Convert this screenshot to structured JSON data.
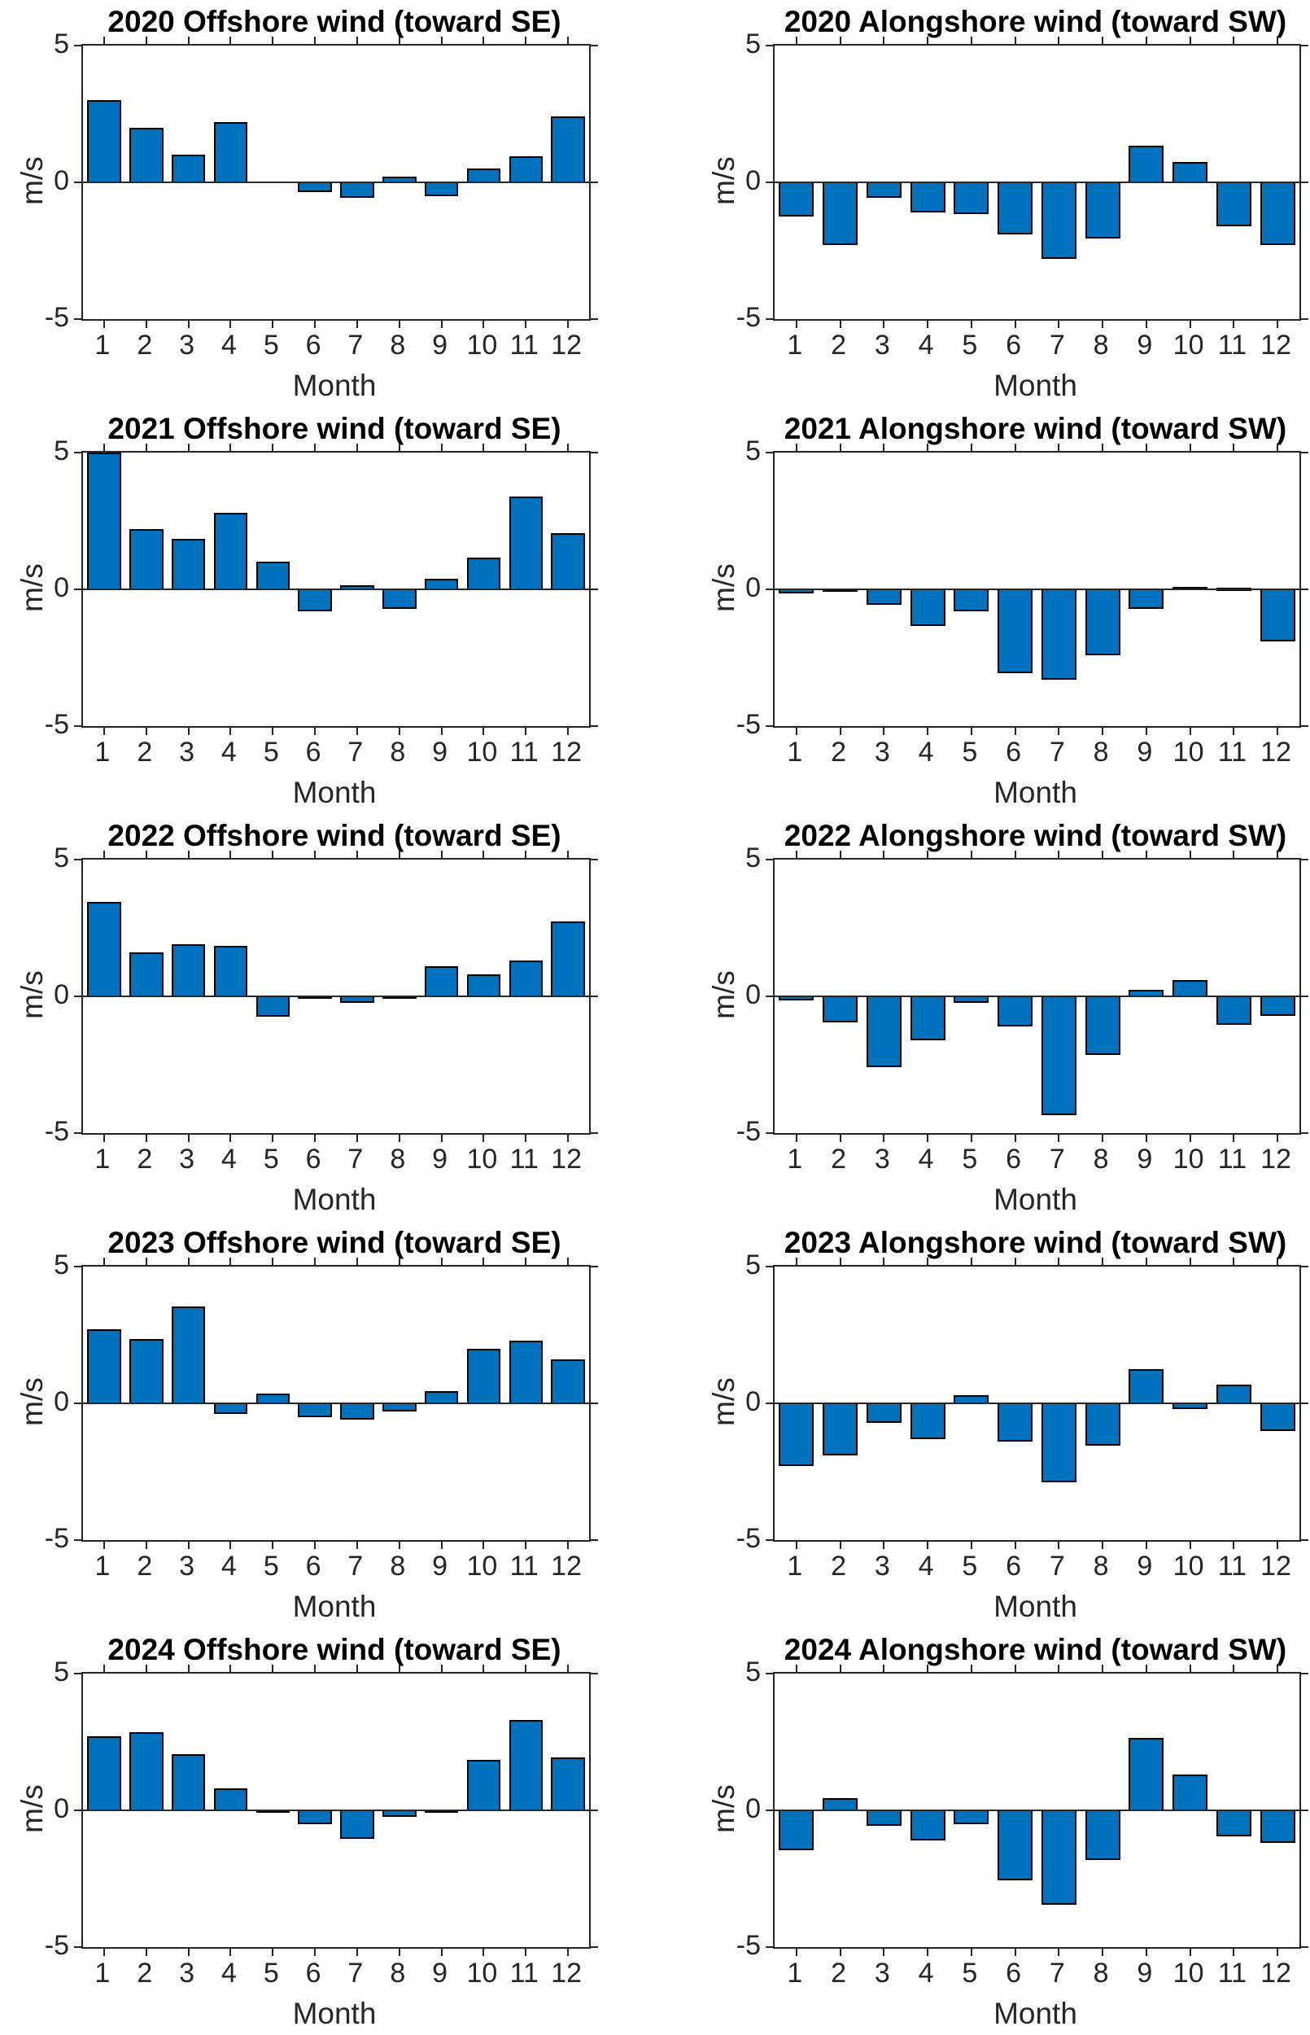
{
  "figure": {
    "ylabel": "m/s",
    "xlabel": "Month",
    "bar_color": "#0072BD",
    "axis_color": "#262626",
    "yticks": [
      "5",
      "0",
      "-5"
    ],
    "xticks": [
      "1",
      "2",
      "3",
      "4",
      "5",
      "6",
      "7",
      "8",
      "9",
      "10",
      "11",
      "12"
    ]
  },
  "chart_data": [
    {
      "type": "bar",
      "title": "2020 Offshore wind (toward SE)",
      "xlabel": "Month",
      "ylabel": "m/s",
      "ylim": [
        -5,
        5
      ],
      "x": [
        1,
        2,
        3,
        4,
        5,
        6,
        7,
        8,
        9,
        10,
        11,
        12
      ],
      "values": [
        3.0,
        2.0,
        1.0,
        2.2,
        0.0,
        -0.35,
        -0.55,
        0.2,
        -0.5,
        0.5,
        0.95,
        2.4
      ]
    },
    {
      "type": "bar",
      "title": "2020 Alongshore wind (toward SW)",
      "xlabel": "Month",
      "ylabel": "m/s",
      "ylim": [
        -5,
        5
      ],
      "x": [
        1,
        2,
        3,
        4,
        5,
        6,
        7,
        8,
        9,
        10,
        11,
        12
      ],
      "values": [
        -1.25,
        -2.3,
        -0.55,
        -1.1,
        -1.15,
        -1.9,
        -2.8,
        -2.05,
        1.35,
        0.75,
        -1.6,
        -2.3
      ]
    },
    {
      "type": "bar",
      "title": "2021 Offshore wind (toward SE)",
      "xlabel": "Month",
      "ylabel": "m/s",
      "ylim": [
        -5,
        5
      ],
      "x": [
        1,
        2,
        3,
        4,
        5,
        6,
        7,
        8,
        9,
        10,
        11,
        12
      ],
      "values": [
        5.0,
        2.2,
        1.85,
        2.8,
        1.0,
        -0.8,
        0.15,
        -0.7,
        0.4,
        1.15,
        3.4,
        2.05
      ]
    },
    {
      "type": "bar",
      "title": "2021 Alongshore wind (toward SW)",
      "xlabel": "Month",
      "ylabel": "m/s",
      "ylim": [
        -5,
        5
      ],
      "x": [
        1,
        2,
        3,
        4,
        5,
        6,
        7,
        8,
        9,
        10,
        11,
        12
      ],
      "values": [
        -0.15,
        -0.05,
        -0.55,
        -1.35,
        -0.8,
        -3.05,
        -3.3,
        -2.4,
        -0.7,
        0.1,
        0.05,
        -1.9
      ]
    },
    {
      "type": "bar",
      "title": "2022 Offshore wind (toward SE)",
      "xlabel": "Month",
      "ylabel": "m/s",
      "ylim": [
        -5,
        5
      ],
      "x": [
        1,
        2,
        3,
        4,
        5,
        6,
        7,
        8,
        9,
        10,
        11,
        12
      ],
      "values": [
        3.45,
        1.6,
        1.9,
        1.85,
        -0.75,
        -0.05,
        -0.25,
        -0.05,
        1.1,
        0.8,
        1.3,
        2.75
      ]
    },
    {
      "type": "bar",
      "title": "2022 Alongshore wind (toward SW)",
      "xlabel": "Month",
      "ylabel": "m/s",
      "ylim": [
        -5,
        5
      ],
      "x": [
        1,
        2,
        3,
        4,
        5,
        6,
        7,
        8,
        9,
        10,
        11,
        12
      ],
      "values": [
        -0.15,
        -0.95,
        -2.6,
        -1.6,
        -0.25,
        -1.1,
        -4.35,
        -2.15,
        0.25,
        0.6,
        -1.05,
        -0.7
      ]
    },
    {
      "type": "bar",
      "title": "2023 Offshore wind (toward SE)",
      "xlabel": "Month",
      "ylabel": "m/s",
      "ylim": [
        -5,
        5
      ],
      "x": [
        1,
        2,
        3,
        4,
        5,
        6,
        7,
        8,
        9,
        10,
        11,
        12
      ],
      "values": [
        2.7,
        2.35,
        3.55,
        -0.4,
        0.35,
        -0.5,
        -0.6,
        -0.3,
        0.45,
        2.0,
        2.3,
        1.6
      ]
    },
    {
      "type": "bar",
      "title": "2023 Alongshore wind (toward SW)",
      "xlabel": "Month",
      "ylabel": "m/s",
      "ylim": [
        -5,
        5
      ],
      "x": [
        1,
        2,
        3,
        4,
        5,
        6,
        7,
        8,
        9,
        10,
        11,
        12
      ],
      "values": [
        -2.3,
        -1.9,
        -0.7,
        -1.3,
        0.3,
        -1.4,
        -2.9,
        -1.55,
        1.25,
        -0.2,
        0.7,
        -1.0
      ]
    },
    {
      "type": "bar",
      "title": "2024 Offshore wind (toward SE)",
      "xlabel": "Month",
      "ylabel": "m/s",
      "ylim": [
        -5,
        5
      ],
      "x": [
        1,
        2,
        3,
        4,
        5,
        6,
        7,
        8,
        9,
        10,
        11,
        12
      ],
      "values": [
        2.7,
        2.85,
        2.05,
        0.8,
        -0.05,
        -0.5,
        -1.05,
        -0.25,
        -0.1,
        1.85,
        3.3,
        1.95
      ]
    },
    {
      "type": "bar",
      "title": "2024 Alongshore wind (toward SW)",
      "xlabel": "Month",
      "ylabel": "m/s",
      "ylim": [
        -5,
        5
      ],
      "x": [
        1,
        2,
        3,
        4,
        5,
        6,
        7,
        8,
        9,
        10,
        11,
        12
      ],
      "values": [
        -1.45,
        0.45,
        -0.55,
        -1.1,
        -0.5,
        -2.55,
        -3.45,
        -1.8,
        2.65,
        1.3,
        -0.95,
        -1.2
      ]
    }
  ]
}
